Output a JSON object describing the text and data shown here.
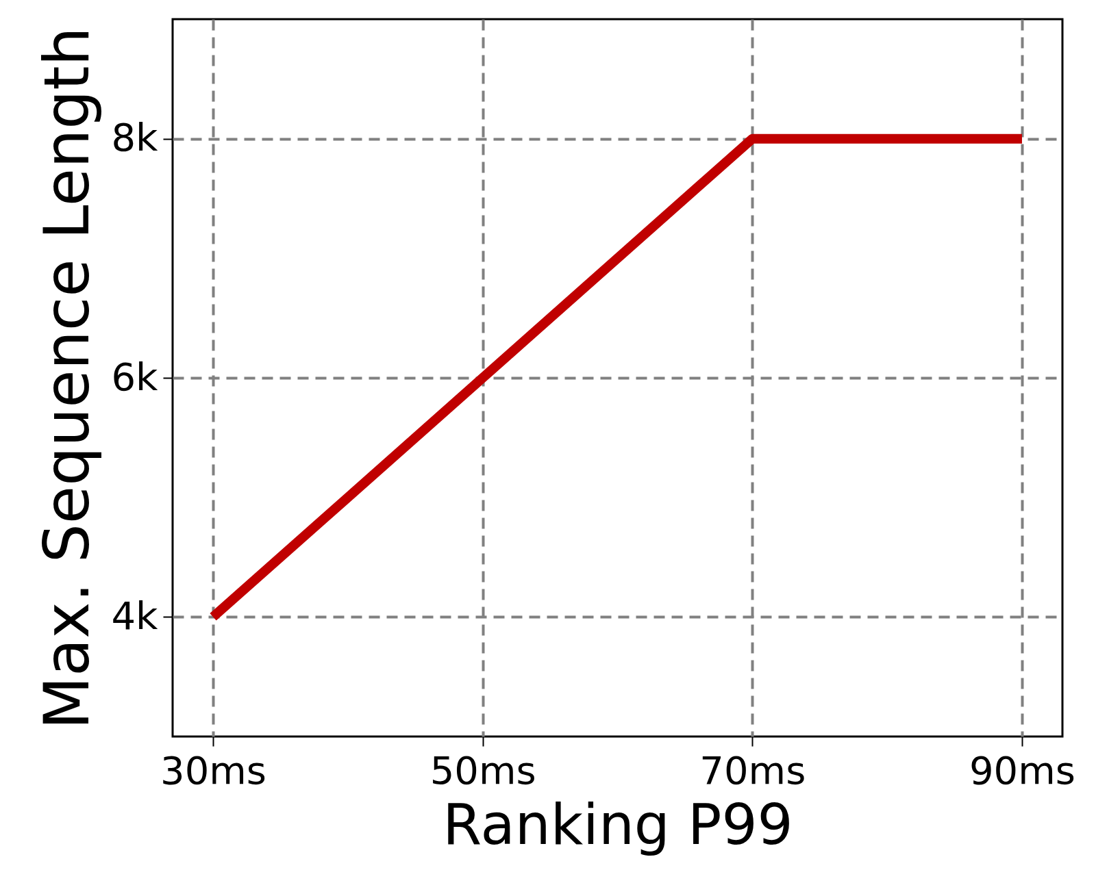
{
  "chart_data": {
    "type": "line",
    "xlabel": "Ranking P99",
    "ylabel": "Max. Sequence Length",
    "x": [
      30,
      50,
      70,
      90
    ],
    "series": [
      {
        "color": "#c00000",
        "values": [
          4000,
          6000,
          8000,
          8000
        ]
      }
    ],
    "xlim": [
      27,
      93
    ],
    "ylim": [
      3000,
      9000
    ],
    "xticks": [
      {
        "value": 30,
        "label": "30ms"
      },
      {
        "value": 50,
        "label": "50ms"
      },
      {
        "value": 70,
        "label": "70ms"
      },
      {
        "value": 90,
        "label": "90ms"
      }
    ],
    "yticks": [
      {
        "value": 4000,
        "label": "4k"
      },
      {
        "value": 6000,
        "label": "6k"
      },
      {
        "value": 8000,
        "label": "8k"
      }
    ],
    "grid": true,
    "line_style": "solid",
    "marker": "none",
    "legend": false
  }
}
